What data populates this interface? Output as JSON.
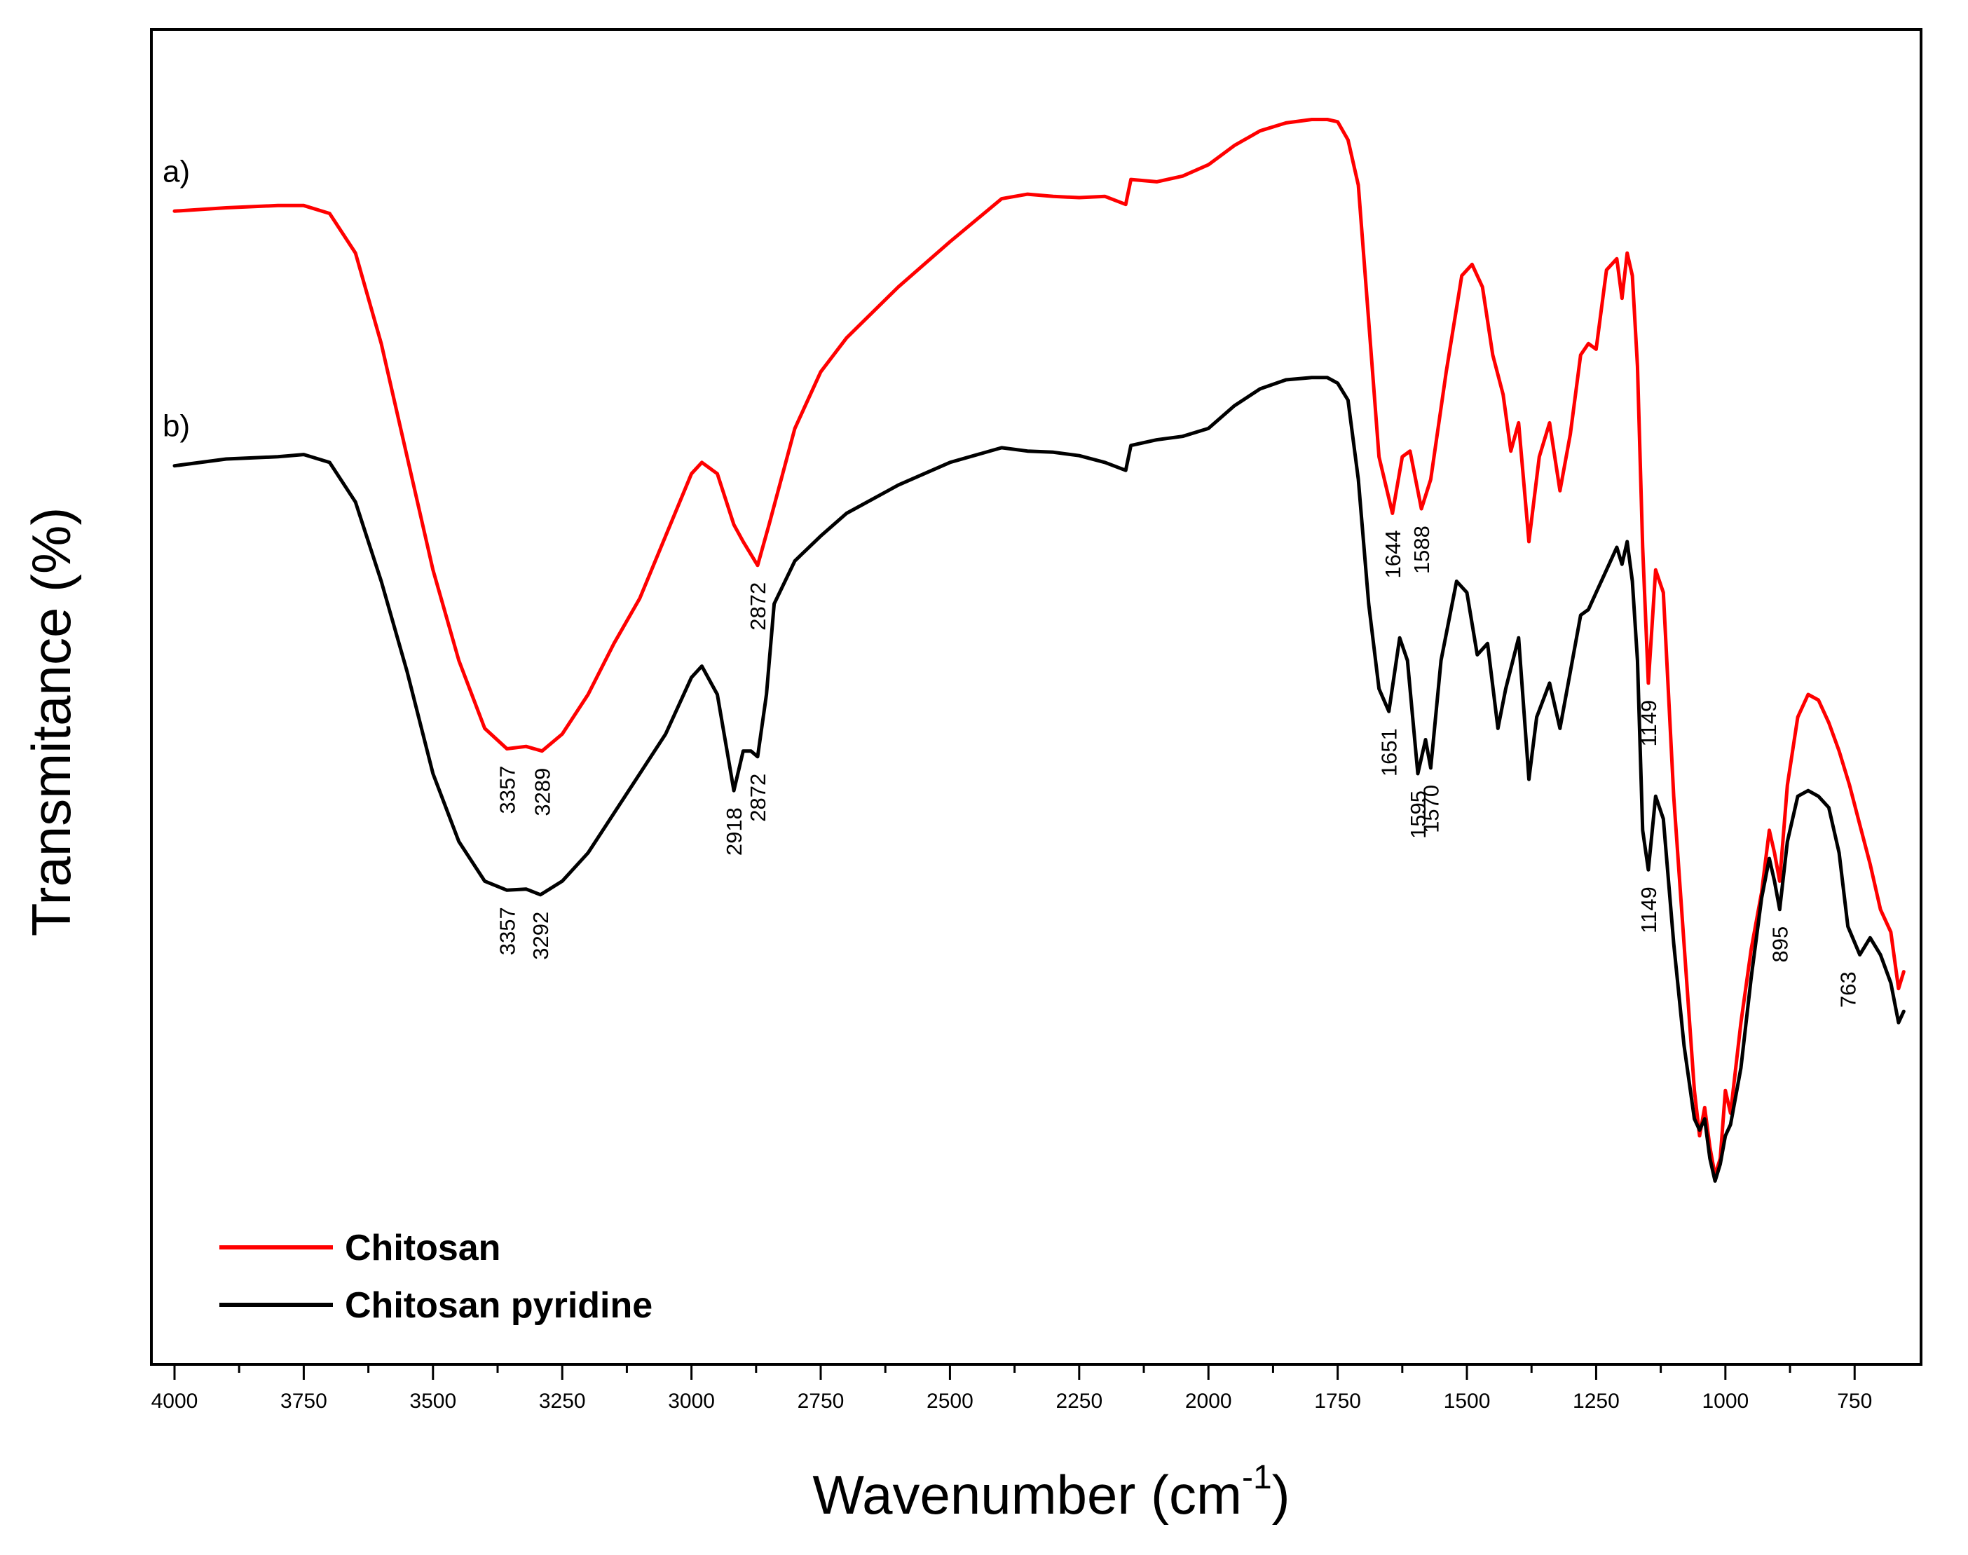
{
  "chart_data": {
    "type": "line",
    "title": "",
    "xlabel": "Wavenumber (cm",
    "xlabel_sup": "-1",
    "xlabel_close": ")",
    "ylabel": "Transmitance (%)",
    "xlim": [
      4000,
      650
    ],
    "ylim": [
      0,
      100
    ],
    "x_ticks": [
      4000,
      3750,
      3500,
      3250,
      3000,
      2750,
      2500,
      2250,
      2000,
      1750,
      1500,
      1250,
      1000,
      750
    ],
    "y_ticks": [],
    "grid": false,
    "legend_position": "bottom-left",
    "series": [
      {
        "name": "Chitosan",
        "panel_label": "a)",
        "color": "#ff0000",
        "x": [
          4000,
          3900,
          3800,
          3750,
          3700,
          3650,
          3600,
          3550,
          3500,
          3450,
          3400,
          3357,
          3320,
          3289,
          3250,
          3200,
          3150,
          3100,
          3050,
          3000,
          2980,
          2950,
          2918,
          2900,
          2872,
          2850,
          2800,
          2750,
          2700,
          2600,
          2500,
          2400,
          2350,
          2300,
          2250,
          2200,
          2160,
          2150,
          2100,
          2050,
          2000,
          1950,
          1900,
          1850,
          1800,
          1770,
          1750,
          1730,
          1710,
          1690,
          1670,
          1644,
          1625,
          1610,
          1588,
          1570,
          1540,
          1510,
          1490,
          1470,
          1450,
          1430,
          1415,
          1400,
          1380,
          1360,
          1340,
          1320,
          1300,
          1280,
          1265,
          1250,
          1230,
          1210,
          1200,
          1190,
          1180,
          1170,
          1160,
          1149,
          1135,
          1120,
          1100,
          1080,
          1060,
          1050,
          1040,
          1030,
          1020,
          1010,
          1000,
          990,
          970,
          950,
          930,
          915,
          905,
          895,
          880,
          860,
          840,
          820,
          800,
          780,
          760,
          740,
          720,
          700,
          680,
          665,
          655
        ],
        "y": [
          89.7,
          90.0,
          90.2,
          90.2,
          89.5,
          86.0,
          78.0,
          68.0,
          58.0,
          50.0,
          44.0,
          42.2,
          42.4,
          42.0,
          43.5,
          47.0,
          51.5,
          55.5,
          61.0,
          66.5,
          67.5,
          66.5,
          62.0,
          60.5,
          58.4,
          62.0,
          70.5,
          75.5,
          78.5,
          83.0,
          87.0,
          90.8,
          91.2,
          91.0,
          90.9,
          91.0,
          90.3,
          92.5,
          92.3,
          92.8,
          93.8,
          95.5,
          96.8,
          97.5,
          97.8,
          97.8,
          97.6,
          96.0,
          92.0,
          80.0,
          68.0,
          63.0,
          68.0,
          68.5,
          63.4,
          66.0,
          75.5,
          84.0,
          85.0,
          83.0,
          77.0,
          73.5,
          68.5,
          71.0,
          60.5,
          68.0,
          71.0,
          65.0,
          70.0,
          77.0,
          78.0,
          77.5,
          84.5,
          85.5,
          82.0,
          86.0,
          84.0,
          76.0,
          60.0,
          48.0,
          58.0,
          56.0,
          38.0,
          25.0,
          12.0,
          8.0,
          10.5,
          7.0,
          4.5,
          6.0,
          12.0,
          10.0,
          18.0,
          24.5,
          29.5,
          35.0,
          33.0,
          30.5,
          39.0,
          45.0,
          47.0,
          46.5,
          44.5,
          42.0,
          39.0,
          35.5,
          32.0,
          28.0,
          26.0,
          21.0,
          22.5
        ]
      },
      {
        "name": "Chitosan pyridine",
        "panel_label": "b)",
        "color": "#000000",
        "x": [
          4000,
          3900,
          3800,
          3750,
          3700,
          3650,
          3600,
          3550,
          3500,
          3450,
          3400,
          3357,
          3320,
          3292,
          3250,
          3200,
          3150,
          3100,
          3050,
          3000,
          2980,
          2950,
          2935,
          2918,
          2900,
          2885,
          2872,
          2855,
          2840,
          2800,
          2750,
          2700,
          2600,
          2500,
          2400,
          2350,
          2300,
          2250,
          2200,
          2160,
          2150,
          2100,
          2050,
          2000,
          1950,
          1900,
          1850,
          1800,
          1770,
          1750,
          1730,
          1710,
          1690,
          1670,
          1651,
          1630,
          1615,
          1595,
          1580,
          1570,
          1550,
          1520,
          1500,
          1480,
          1460,
          1440,
          1425,
          1400,
          1380,
          1365,
          1340,
          1320,
          1300,
          1280,
          1265,
          1250,
          1230,
          1210,
          1200,
          1190,
          1180,
          1170,
          1160,
          1149,
          1135,
          1120,
          1100,
          1080,
          1060,
          1050,
          1040,
          1030,
          1020,
          1010,
          1000,
          990,
          970,
          950,
          930,
          915,
          905,
          895,
          880,
          860,
          840,
          820,
          800,
          780,
          763,
          740,
          720,
          700,
          680,
          665,
          655
        ],
        "y": [
          67.2,
          67.8,
          68.0,
          68.2,
          67.5,
          64.0,
          57.0,
          49.0,
          40.0,
          34.0,
          30.5,
          29.7,
          29.8,
          29.3,
          30.5,
          33.0,
          36.5,
          40.0,
          43.5,
          48.5,
          49.5,
          47.0,
          43.0,
          38.5,
          42.0,
          42.0,
          41.5,
          47.0,
          55.0,
          58.8,
          61.0,
          63.0,
          65.5,
          67.5,
          68.8,
          68.5,
          68.4,
          68.1,
          67.5,
          66.8,
          69.0,
          69.5,
          69.8,
          70.5,
          72.5,
          74.0,
          74.8,
          75.0,
          75.0,
          74.5,
          73.0,
          66.0,
          55.0,
          47.5,
          45.5,
          52.0,
          50.0,
          40.0,
          43.0,
          40.5,
          50.0,
          57.0,
          56.0,
          50.5,
          51.5,
          44.0,
          47.5,
          52.0,
          39.5,
          45.0,
          48.0,
          44.0,
          49.0,
          54.0,
          54.5,
          56.0,
          58.0,
          60.0,
          58.5,
          60.5,
          57.0,
          50.0,
          35.0,
          31.5,
          38.0,
          36.0,
          25.0,
          16.0,
          9.5,
          8.5,
          9.5,
          6.0,
          4.0,
          5.5,
          8.0,
          9.0,
          14.0,
          22.0,
          29.0,
          32.5,
          30.5,
          28.0,
          34.0,
          38.0,
          38.5,
          38.0,
          37.0,
          33.0,
          26.5,
          24.0,
          25.5,
          24.0,
          21.5,
          18.0,
          19.0
        ]
      }
    ],
    "annotations": [
      {
        "series": "Chitosan",
        "x": 3357,
        "y": 42.2,
        "label": "3357"
      },
      {
        "series": "Chitosan",
        "x": 3289,
        "y": 42.0,
        "label": "3289"
      },
      {
        "series": "Chitosan",
        "x": 2872,
        "y": 58.4,
        "label": "2872"
      },
      {
        "series": "Chitosan",
        "x": 1644,
        "y": 63.0,
        "label": "1644"
      },
      {
        "series": "Chitosan",
        "x": 1588,
        "y": 63.4,
        "label": "1588"
      },
      {
        "series": "Chitosan",
        "x": 1149,
        "y": 48.0,
        "label": "1149"
      },
      {
        "series": "Chitosan pyridine",
        "x": 3357,
        "y": 29.7,
        "label": "3357"
      },
      {
        "series": "Chitosan pyridine",
        "x": 3292,
        "y": 29.3,
        "label": "3292"
      },
      {
        "series": "Chitosan pyridine",
        "x": 2918,
        "y": 38.5,
        "label": "2918"
      },
      {
        "series": "Chitosan pyridine",
        "x": 2872,
        "y": 41.5,
        "label": "2872"
      },
      {
        "series": "Chitosan pyridine",
        "x": 1651,
        "y": 45.5,
        "label": "1651"
      },
      {
        "series": "Chitosan pyridine",
        "x": 1595,
        "y": 40.0,
        "label": "1595"
      },
      {
        "series": "Chitosan pyridine",
        "x": 1570,
        "y": 40.5,
        "label": "1570"
      },
      {
        "series": "Chitosan pyridine",
        "x": 1149,
        "y": 31.5,
        "label": "1149"
      },
      {
        "series": "Chitosan pyridine",
        "x": 895,
        "y": 28.0,
        "label": "895"
      },
      {
        "series": "Chitosan pyridine",
        "x": 763,
        "y": 24.0,
        "label": "763"
      }
    ]
  }
}
